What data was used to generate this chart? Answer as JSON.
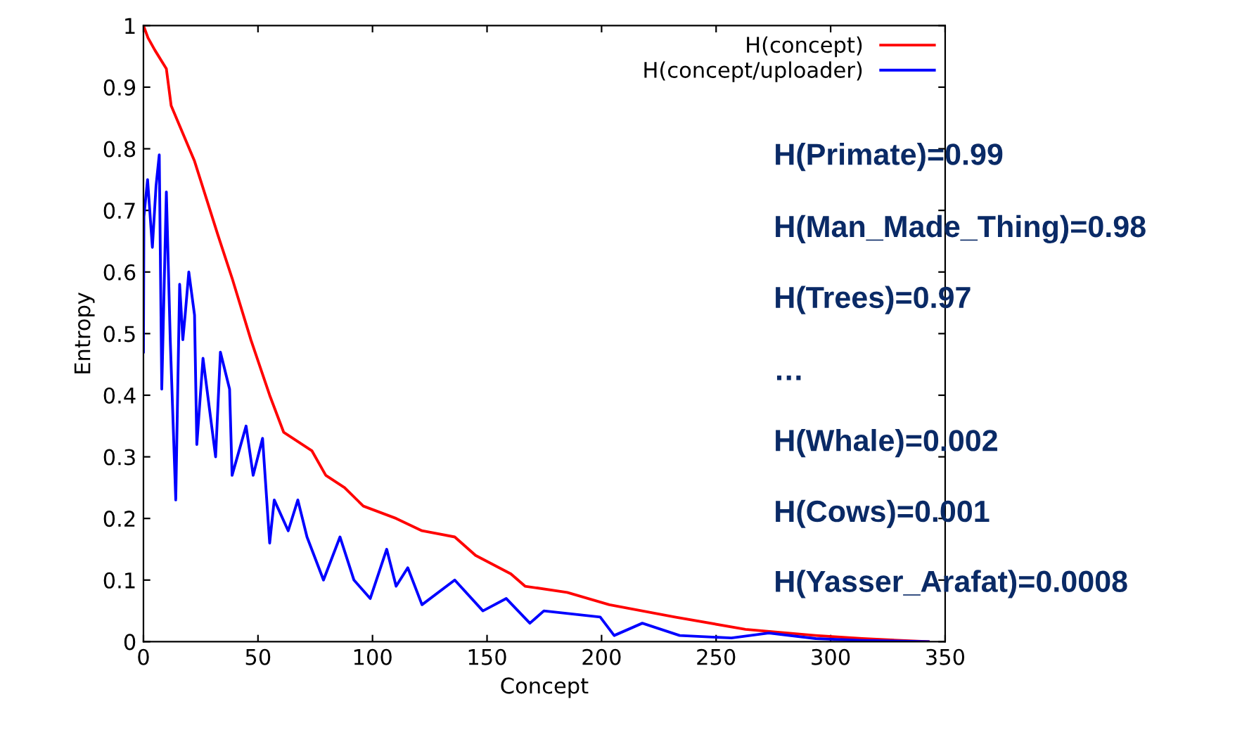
{
  "chart_data": {
    "type": "line",
    "xlabel": "Concept",
    "ylabel": "Entropy",
    "xlim": [
      0,
      350
    ],
    "xticks": [
      0,
      50,
      100,
      150,
      200,
      250,
      300,
      350
    ],
    "ylim": [
      0,
      1
    ],
    "yticks": [
      0,
      0.1,
      0.2,
      0.3,
      0.4,
      0.5,
      0.6,
      0.7,
      0.8,
      0.9,
      1
    ],
    "legend": "top right",
    "grid": false,
    "marker": "none",
    "line_style": "solid",
    "series": [
      {
        "name": "H(concept)",
        "color": "#ff0000",
        "x": [
          0,
          2,
          5,
          10,
          12.1,
          22.3,
          32.5,
          38.7,
          46.9,
          55.1,
          61.2,
          73.5,
          79.6,
          87.8,
          96,
          110.3,
          121.6,
          135.9,
          145,
          160.4,
          166.6,
          185,
          203.4,
          232,
          262.8,
          293.5,
          313.8,
          342.6
        ],
        "values": [
          1.0,
          0.98,
          0.96,
          0.93,
          0.87,
          0.78,
          0.66,
          0.59,
          0.49,
          0.4,
          0.34,
          0.31,
          0.27,
          0.25,
          0.22,
          0.2,
          0.18,
          0.17,
          0.14,
          0.11,
          0.09,
          0.08,
          0.06,
          0.04,
          0.02,
          0.01,
          0.005,
          0
        ]
      },
      {
        "name": "H(concept/uploader)",
        "color": "#0000ff",
        "x": [
          0,
          0.2,
          1.8,
          3.9,
          5.5,
          6.9,
          8,
          10,
          11.7,
          14.1,
          15.8,
          17.2,
          18.2,
          19.8,
          22.3,
          23.3,
          26,
          28.4,
          31.5,
          33.6,
          37.6,
          38.7,
          44.8,
          47.9,
          52,
          55.1,
          57.1,
          63.2,
          67.4,
          71.4,
          78.6,
          85.8,
          91.9,
          99,
          106.2,
          110.3,
          115.4,
          121.6,
          135.9,
          148.2,
          158.4,
          168.7,
          174.8,
          199.4,
          205.5,
          217.8,
          234.1,
          256.7,
          273,
          293.5,
          313.8,
          342.6
        ],
        "values": [
          0.47,
          0.69,
          0.75,
          0.64,
          0.74,
          0.79,
          0.41,
          0.73,
          0.49,
          0.23,
          0.58,
          0.49,
          0.53,
          0.6,
          0.53,
          0.32,
          0.46,
          0.39,
          0.3,
          0.47,
          0.41,
          0.27,
          0.35,
          0.27,
          0.33,
          0.16,
          0.23,
          0.18,
          0.23,
          0.17,
          0.1,
          0.17,
          0.1,
          0.07,
          0.15,
          0.09,
          0.12,
          0.06,
          0.1,
          0.05,
          0.07,
          0.03,
          0.05,
          0.04,
          0.01,
          0.03,
          0.01,
          0.006,
          0.014,
          0.005,
          0.002,
          0
        ]
      }
    ],
    "annotations": [
      "H(Primate)=0.99",
      "H(Man_Made_Thing)=0.98",
      "H(Trees)=0.97",
      "…",
      "H(Whale)=0.002",
      "H(Cows)=0.001",
      "H(Yasser_Arafat)=0.0008"
    ]
  }
}
